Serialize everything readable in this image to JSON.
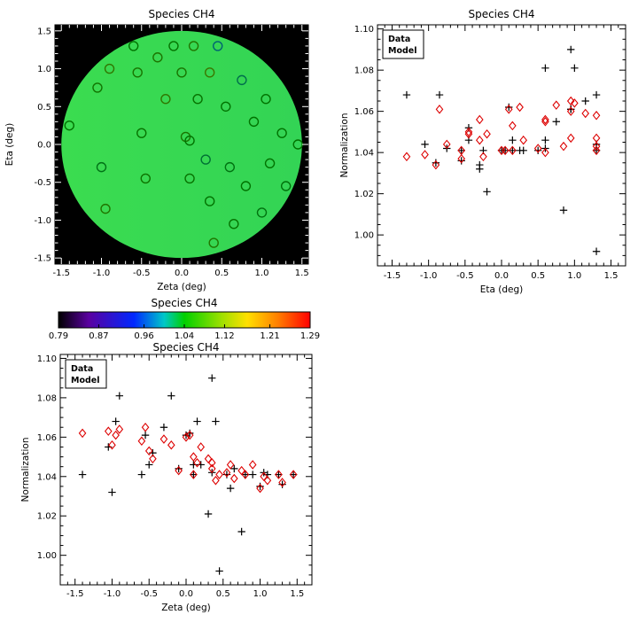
{
  "figure": {
    "background": "#ffffff",
    "species": "CH4"
  },
  "colors": {
    "data_series": "#000000",
    "model_series": "#dd0000",
    "map_background": "#000000",
    "axis": "#000000"
  },
  "chart_data": [
    {
      "type": "scatter",
      "variant": "sky-map",
      "title": "Species CH4",
      "xlabel": "Zeta (deg)",
      "ylabel": "Eta (deg)",
      "xlim": [
        -1.58,
        1.58
      ],
      "ylim": [
        -1.58,
        1.58
      ],
      "xticks": [
        -1.5,
        -1.0,
        -0.5,
        0.0,
        0.5,
        1.0,
        1.5
      ],
      "xtick_labels": [
        "-1.5",
        "-1.0",
        "-0.5",
        "0.0",
        "0.5",
        "1.0",
        "1.5"
      ],
      "yticks": [
        -1.5,
        -1.0,
        -0.5,
        0.0,
        0.5,
        1.0,
        1.5
      ],
      "ytick_labels": [
        "-1.5",
        "-1.0",
        "-0.5",
        "0.0",
        "0.5",
        "1.0",
        "1.5"
      ],
      "disk_radius_deg": 1.5,
      "surface_colors": [
        "#3bdc50",
        "#33d455"
      ],
      "points": [
        [
          -1.4,
          0.25,
          1.041
        ],
        [
          -1.05,
          0.75,
          1.055
        ],
        [
          -1.0,
          -0.3,
          1.032
        ],
        [
          -0.95,
          -0.85,
          1.068
        ],
        [
          -0.9,
          1.0,
          1.081
        ],
        [
          -0.6,
          1.3,
          1.041
        ],
        [
          -0.55,
          0.95,
          1.061
        ],
        [
          -0.5,
          0.15,
          1.046
        ],
        [
          -0.45,
          -0.45,
          1.052
        ],
        [
          -0.3,
          1.15,
          1.065
        ],
        [
          -0.2,
          0.6,
          1.081
        ],
        [
          -0.1,
          1.3,
          1.044
        ],
        [
          0.0,
          0.95,
          1.061
        ],
        [
          0.05,
          0.1,
          1.062
        ],
        [
          0.1,
          -0.45,
          1.046
        ],
        [
          0.1,
          0.05,
          1.041
        ],
        [
          0.15,
          1.3,
          1.068
        ],
        [
          0.2,
          0.6,
          1.046
        ],
        [
          0.3,
          -0.2,
          1.021
        ],
        [
          0.35,
          0.95,
          1.09
        ],
        [
          0.35,
          -0.75,
          1.042
        ],
        [
          0.4,
          -1.3,
          1.068
        ],
        [
          0.45,
          1.3,
          0.992
        ],
        [
          0.55,
          0.5,
          1.041
        ],
        [
          0.6,
          -0.3,
          1.034
        ],
        [
          0.65,
          -1.05,
          1.044
        ],
        [
          0.75,
          0.85,
          1.012
        ],
        [
          0.8,
          -0.55,
          1.041
        ],
        [
          0.9,
          0.3,
          1.041
        ],
        [
          1.0,
          -0.9,
          1.035
        ],
        [
          1.05,
          0.6,
          1.042
        ],
        [
          1.1,
          -0.25,
          1.041
        ],
        [
          1.25,
          0.15,
          1.041
        ],
        [
          1.3,
          -0.55,
          1.036
        ],
        [
          1.45,
          0.0,
          1.041
        ]
      ]
    },
    {
      "type": "scatter",
      "title": "Species CH4",
      "xlabel": "Eta (deg)",
      "ylabel": "Normalization",
      "xlim": [
        -1.7,
        1.7
      ],
      "ylim": [
        0.985,
        1.102
      ],
      "xticks": [
        -1.5,
        -1.0,
        -0.5,
        0.0,
        0.5,
        1.0,
        1.5
      ],
      "xtick_labels": [
        "-1.5",
        "-1.0",
        "-0.5",
        "0.0",
        "0.5",
        "1.0",
        "1.5"
      ],
      "yticks": [
        1.0,
        1.02,
        1.04,
        1.06,
        1.08,
        1.1
      ],
      "ytick_labels": [
        "1.00",
        "1.02",
        "1.04",
        "1.06",
        "1.08",
        "1.10"
      ],
      "legend_position": "top-left",
      "series": [
        {
          "name": "Data",
          "marker": "plus",
          "color": "#000000",
          "x": [
            0.25,
            0.75,
            -0.3,
            -0.85,
            1.0,
            1.3,
            0.95,
            0.15,
            -0.45,
            1.15,
            0.6,
            1.3,
            0.95,
            0.1,
            -0.45,
            0.05,
            1.3,
            0.6,
            -0.2,
            0.95,
            -0.75,
            -1.3,
            1.3,
            0.5,
            -0.3,
            -1.05,
            0.85,
            -0.55,
            0.3,
            -0.9,
            0.6,
            -0.25,
            0.15,
            -0.55,
            0.0
          ],
          "y": [
            1.041,
            1.055,
            1.032,
            1.068,
            1.081,
            1.041,
            1.061,
            1.046,
            1.052,
            1.065,
            1.081,
            1.044,
            1.061,
            1.062,
            1.046,
            1.041,
            1.068,
            1.046,
            1.021,
            1.09,
            1.042,
            1.068,
            0.992,
            1.041,
            1.034,
            1.044,
            1.012,
            1.041,
            1.041,
            1.035,
            1.042,
            1.041,
            1.041,
            1.036,
            1.041
          ]
        },
        {
          "name": "Model",
          "marker": "diamond",
          "color": "#dd0000",
          "x": [
            0.25,
            0.75,
            -0.3,
            -0.85,
            1.0,
            1.3,
            0.95,
            0.15,
            -0.45,
            1.15,
            0.6,
            1.3,
            0.95,
            0.1,
            -0.45,
            0.05,
            1.3,
            0.6,
            -0.2,
            0.95,
            -0.75,
            -1.3,
            1.3,
            0.5,
            -0.3,
            -1.05,
            0.85,
            -0.55,
            0.3,
            -0.9,
            0.6,
            -0.25,
            0.15,
            -0.55,
            0.0
          ],
          "y": [
            1.062,
            1.063,
            1.056,
            1.061,
            1.064,
            1.058,
            1.065,
            1.053,
            1.049,
            1.059,
            1.056,
            1.043,
            1.06,
            1.061,
            1.05,
            1.041,
            1.047,
            1.055,
            1.049,
            1.047,
            1.044,
            1.038,
            1.041,
            1.042,
            1.046,
            1.039,
            1.043,
            1.041,
            1.046,
            1.034,
            1.04,
            1.038,
            1.041,
            1.037,
            1.041
          ]
        }
      ]
    },
    {
      "type": "heatmap",
      "variant": "colorbar",
      "title": "Species CH4",
      "range": [
        0.79,
        1.29
      ],
      "ticks": [
        0.79,
        0.87,
        0.96,
        1.04,
        1.12,
        1.21,
        1.29
      ],
      "tick_labels": [
        "0.79",
        "0.87",
        "0.96",
        "1.04",
        "1.12",
        "1.21",
        "1.29"
      ],
      "stops": [
        {
          "t": 0.0,
          "c": "#000000"
        },
        {
          "t": 0.12,
          "c": "#5a00a0"
        },
        {
          "t": 0.3,
          "c": "#0028ff"
        },
        {
          "t": 0.42,
          "c": "#00c8c8"
        },
        {
          "t": 0.5,
          "c": "#00d000"
        },
        {
          "t": 0.65,
          "c": "#a0e000"
        },
        {
          "t": 0.75,
          "c": "#ffe000"
        },
        {
          "t": 0.87,
          "c": "#ff8000"
        },
        {
          "t": 1.0,
          "c": "#ff0000"
        }
      ]
    },
    {
      "type": "scatter",
      "title": "Species CH4",
      "xlabel": "Zeta (deg)",
      "ylabel": "Normalization",
      "xlim": [
        -1.7,
        1.7
      ],
      "ylim": [
        0.985,
        1.102
      ],
      "xticks": [
        -1.5,
        -1.0,
        -0.5,
        0.0,
        0.5,
        1.0,
        1.5
      ],
      "xtick_labels": [
        "-1.5",
        "-1.0",
        "-0.5",
        "0.0",
        "0.5",
        "1.0",
        "1.5"
      ],
      "yticks": [
        1.0,
        1.02,
        1.04,
        1.06,
        1.08,
        1.1
      ],
      "ytick_labels": [
        "1.00",
        "1.02",
        "1.04",
        "1.06",
        "1.08",
        "1.10"
      ],
      "legend_position": "top-left",
      "series": [
        {
          "name": "Data",
          "marker": "plus",
          "color": "#000000",
          "x": [
            -1.4,
            -1.05,
            -1.0,
            -0.95,
            -0.9,
            -0.6,
            -0.55,
            -0.5,
            -0.45,
            -0.3,
            -0.2,
            -0.1,
            0.0,
            0.05,
            0.1,
            0.1,
            0.15,
            0.2,
            0.3,
            0.35,
            0.35,
            0.4,
            0.45,
            0.55,
            0.6,
            0.65,
            0.75,
            0.8,
            0.9,
            1.0,
            1.05,
            1.1,
            1.25,
            1.3,
            1.45
          ],
          "y": [
            1.041,
            1.055,
            1.032,
            1.068,
            1.081,
            1.041,
            1.061,
            1.046,
            1.052,
            1.065,
            1.081,
            1.044,
            1.061,
            1.062,
            1.046,
            1.041,
            1.068,
            1.046,
            1.021,
            1.09,
            1.042,
            1.068,
            0.992,
            1.041,
            1.034,
            1.044,
            1.012,
            1.041,
            1.041,
            1.035,
            1.042,
            1.041,
            1.041,
            1.036,
            1.041
          ]
        },
        {
          "name": "Model",
          "marker": "diamond",
          "color": "#dd0000",
          "x": [
            -1.4,
            -1.05,
            -1.0,
            -0.95,
            -0.9,
            -0.6,
            -0.55,
            -0.5,
            -0.45,
            -0.3,
            -0.2,
            -0.1,
            0.0,
            0.05,
            0.1,
            0.1,
            0.15,
            0.2,
            0.3,
            0.35,
            0.35,
            0.4,
            0.45,
            0.55,
            0.6,
            0.65,
            0.75,
            0.8,
            0.9,
            1.0,
            1.05,
            1.1,
            1.25,
            1.3,
            1.45
          ],
          "y": [
            1.062,
            1.063,
            1.056,
            1.061,
            1.064,
            1.058,
            1.065,
            1.053,
            1.049,
            1.059,
            1.056,
            1.043,
            1.06,
            1.061,
            1.05,
            1.041,
            1.047,
            1.055,
            1.049,
            1.047,
            1.044,
            1.038,
            1.041,
            1.042,
            1.046,
            1.039,
            1.043,
            1.041,
            1.046,
            1.034,
            1.04,
            1.038,
            1.041,
            1.037,
            1.041
          ]
        }
      ]
    }
  ]
}
